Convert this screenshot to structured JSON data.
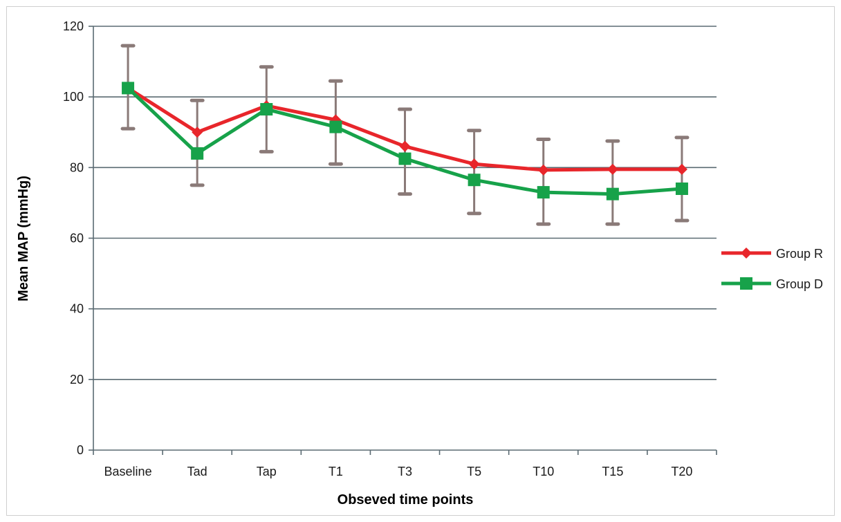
{
  "chart_data": {
    "type": "line",
    "title": "",
    "xlabel": "Obseved time points",
    "ylabel": "Mean MAP (mmHg)",
    "ylim": [
      0,
      120
    ],
    "yticks": [
      "0",
      "20",
      "40",
      "60",
      "80",
      "100",
      "120"
    ],
    "grid": "horizontal",
    "legend_position": "right",
    "categories": [
      "Baseline",
      "Tad",
      "Tap",
      "T1",
      "T3",
      "T5",
      "T10",
      "T15",
      "T20"
    ],
    "series": [
      {
        "name": "Group R",
        "color": "#e8262b",
        "marker": "diamond",
        "values": [
          102.5,
          90,
          97.5,
          93.5,
          86,
          81,
          79.3,
          79.5,
          79.5
        ]
      },
      {
        "name": "Group D",
        "color": "#17a24a",
        "marker": "square",
        "values": [
          102.5,
          84,
          96.5,
          91.5,
          82.5,
          76.5,
          73,
          72.5,
          74
        ]
      }
    ],
    "error_bars": {
      "color": "#8a7a78",
      "lower": [
        91,
        75,
        84.5,
        81,
        72.5,
        67,
        64,
        64,
        65
      ],
      "upper": [
        114.5,
        99,
        108.5,
        104.5,
        96.5,
        90.5,
        88,
        87.5,
        88.5
      ]
    }
  }
}
